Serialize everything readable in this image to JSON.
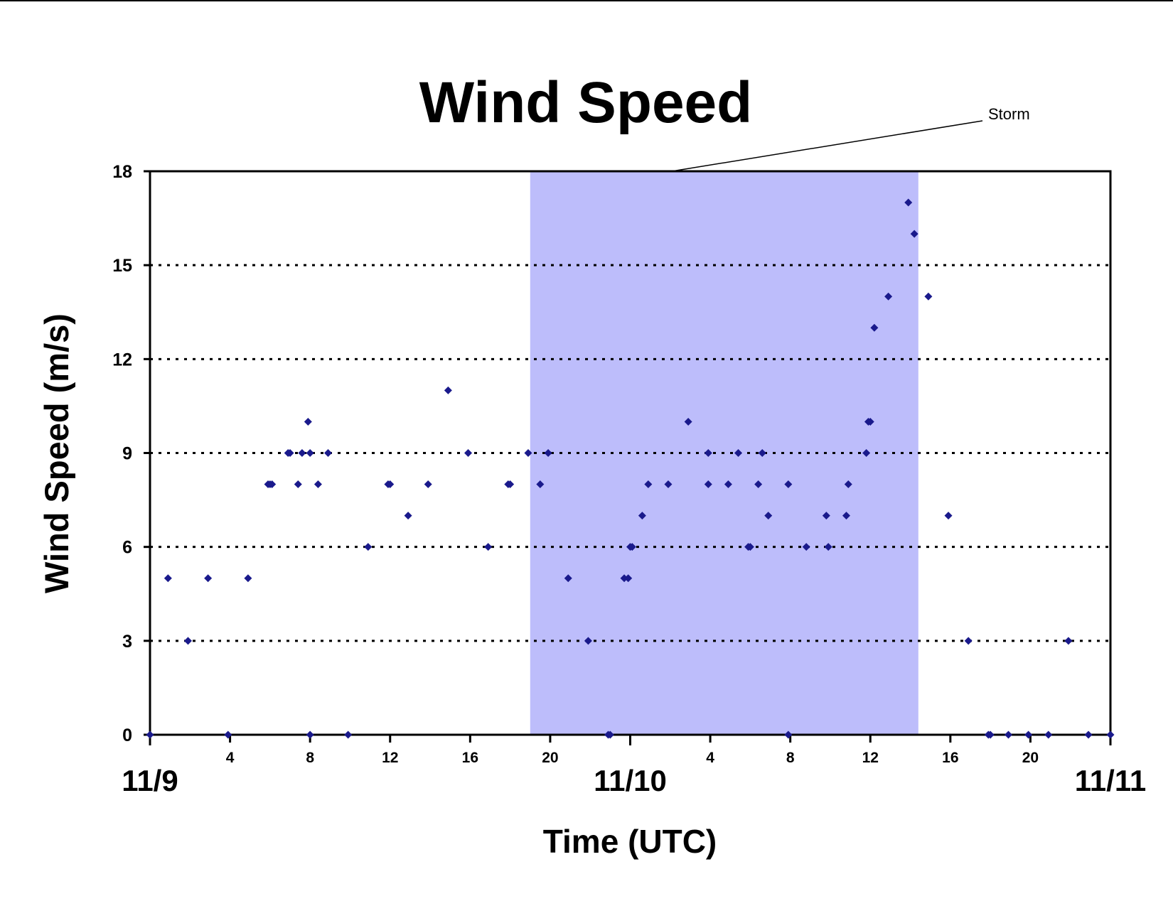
{
  "chart_data": {
    "type": "scatter",
    "title": "Wind Speed",
    "xlabel": "Time (UTC)",
    "ylabel": "Wind Speed (m/s)",
    "annotation": "Storm",
    "x_unit": "hours since 11/9 00:00 UTC",
    "xlim": [
      0,
      48
    ],
    "ylim": [
      0,
      18
    ],
    "y_ticks": [
      0,
      3,
      6,
      9,
      12,
      15,
      18
    ],
    "x_hour_ticks": [
      {
        "x": 4,
        "label": "4"
      },
      {
        "x": 8,
        "label": "8"
      },
      {
        "x": 12,
        "label": "12"
      },
      {
        "x": 16,
        "label": "16"
      },
      {
        "x": 20,
        "label": "20"
      },
      {
        "x": 28,
        "label": "4"
      },
      {
        "x": 32,
        "label": "8"
      },
      {
        "x": 36,
        "label": "12"
      },
      {
        "x": 40,
        "label": "16"
      },
      {
        "x": 44,
        "label": "20"
      }
    ],
    "x_day_ticks": [
      {
        "x": 0,
        "label": "11/9"
      },
      {
        "x": 24,
        "label": "11/10"
      },
      {
        "x": 48,
        "label": "11/11"
      }
    ],
    "grid": "horizontal dotted",
    "shaded_region": {
      "label": "Storm",
      "x_start": 19.0,
      "x_end": 38.4,
      "color": "#bdbdfb"
    },
    "marker_color": "#1a1a8c",
    "points": [
      [
        0.0,
        0
      ],
      [
        0.9,
        5
      ],
      [
        1.9,
        3
      ],
      [
        2.9,
        5
      ],
      [
        3.9,
        0
      ],
      [
        4.9,
        5
      ],
      [
        5.9,
        8
      ],
      [
        6.0,
        8
      ],
      [
        6.1,
        8
      ],
      [
        6.9,
        9
      ],
      [
        7.0,
        9
      ],
      [
        7.4,
        8
      ],
      [
        7.6,
        9
      ],
      [
        7.9,
        10
      ],
      [
        8.0,
        9
      ],
      [
        8.0,
        0
      ],
      [
        8.4,
        8
      ],
      [
        8.9,
        9
      ],
      [
        9.9,
        0
      ],
      [
        10.9,
        6
      ],
      [
        11.9,
        8
      ],
      [
        12.0,
        8
      ],
      [
        12.9,
        7
      ],
      [
        13.9,
        8
      ],
      [
        14.9,
        11
      ],
      [
        15.9,
        9
      ],
      [
        16.9,
        6
      ],
      [
        17.9,
        8
      ],
      [
        18.0,
        8
      ],
      [
        18.9,
        9
      ],
      [
        19.5,
        8
      ],
      [
        19.9,
        9
      ],
      [
        20.9,
        5
      ],
      [
        21.9,
        3
      ],
      [
        22.9,
        0
      ],
      [
        23.0,
        0
      ],
      [
        23.7,
        5
      ],
      [
        23.9,
        5
      ],
      [
        24.0,
        6
      ],
      [
        24.1,
        6
      ],
      [
        24.6,
        7
      ],
      [
        24.9,
        8
      ],
      [
        25.9,
        8
      ],
      [
        26.9,
        10
      ],
      [
        27.9,
        9
      ],
      [
        27.9,
        8
      ],
      [
        28.9,
        8
      ],
      [
        29.4,
        9
      ],
      [
        29.9,
        6
      ],
      [
        30.0,
        6
      ],
      [
        30.4,
        8
      ],
      [
        30.6,
        9
      ],
      [
        30.9,
        7
      ],
      [
        31.9,
        8
      ],
      [
        31.9,
        0
      ],
      [
        32.8,
        6
      ],
      [
        33.8,
        7
      ],
      [
        33.9,
        6
      ],
      [
        34.8,
        7
      ],
      [
        34.9,
        8
      ],
      [
        35.8,
        9
      ],
      [
        35.9,
        10
      ],
      [
        36.0,
        10
      ],
      [
        36.2,
        13
      ],
      [
        36.9,
        14
      ],
      [
        37.9,
        17
      ],
      [
        38.2,
        16
      ],
      [
        38.9,
        14
      ],
      [
        39.9,
        7
      ],
      [
        40.9,
        3
      ],
      [
        41.9,
        0
      ],
      [
        42.0,
        0
      ],
      [
        42.9,
        0
      ],
      [
        43.9,
        0
      ],
      [
        44.9,
        0
      ],
      [
        45.9,
        3
      ],
      [
        46.9,
        0
      ],
      [
        48.0,
        0
      ]
    ]
  }
}
